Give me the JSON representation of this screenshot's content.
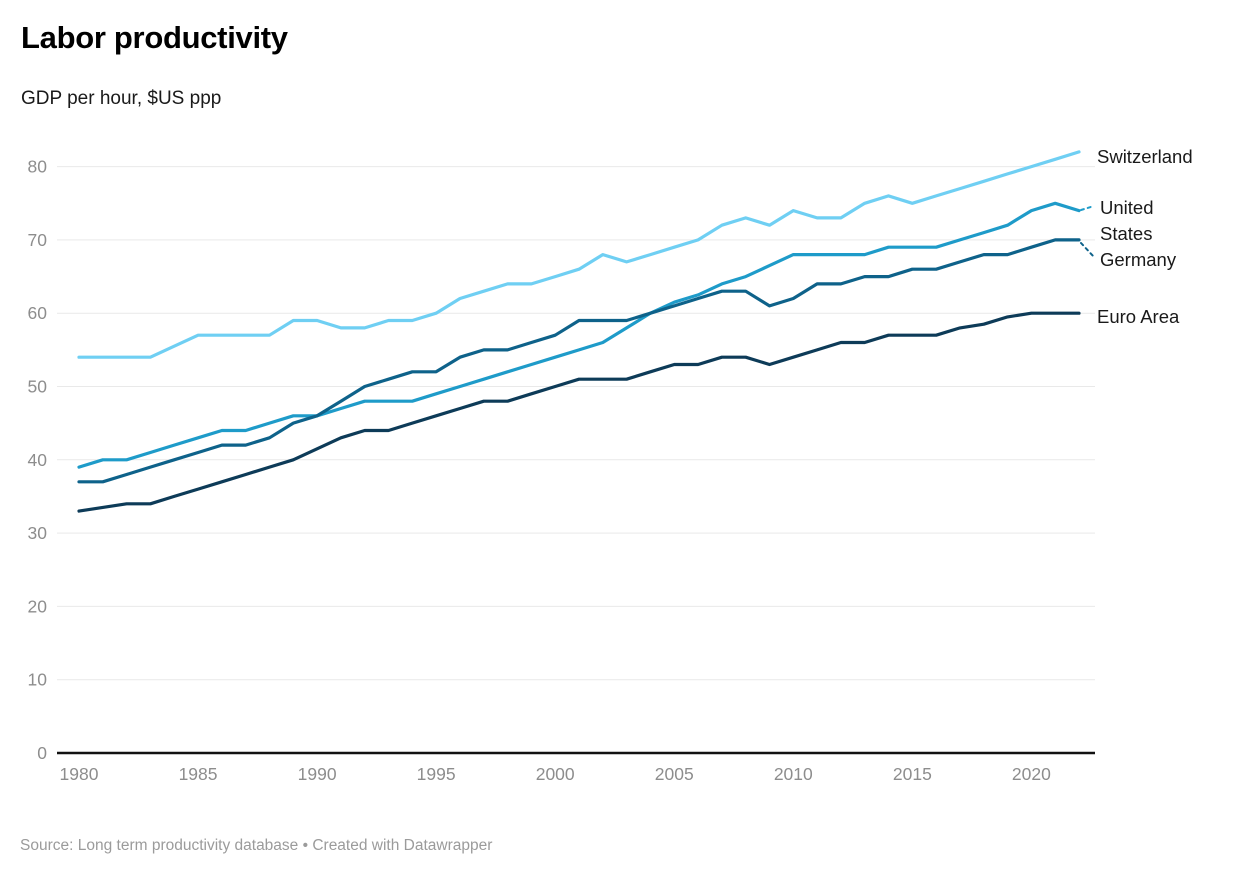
{
  "header": {
    "title": "Labor productivity",
    "subtitle": "GDP per hour, $US ppp"
  },
  "footer": {
    "text": "Source: Long term productivity database • Created with Datawrapper"
  },
  "colors": {
    "switzerland": "#6fcff3",
    "united_states": "#1e9bc9",
    "germany": "#0e628a",
    "euro_area": "#0d3b58",
    "gridline": "#e9e9e9",
    "axis_line": "#111111",
    "tick_label": "#8d8d8d",
    "series_label": "#1a1a1a"
  },
  "chart_data": {
    "type": "line",
    "title": "Labor productivity",
    "subtitle": "GDP per hour, $US ppp",
    "xlabel": "",
    "ylabel": "",
    "xlim": [
      1980,
      2022
    ],
    "ylim": [
      0,
      85
    ],
    "xticks": [
      1980,
      1985,
      1990,
      1995,
      2000,
      2005,
      2010,
      2015,
      2020
    ],
    "yticks": [
      0,
      10,
      20,
      30,
      40,
      50,
      60,
      70,
      80
    ],
    "grid": "horizontal",
    "legend_position": "direct-labels-at-line-ends-right",
    "x": [
      1980,
      1981,
      1982,
      1983,
      1984,
      1985,
      1986,
      1987,
      1988,
      1989,
      1990,
      1991,
      1992,
      1993,
      1994,
      1995,
      1996,
      1997,
      1998,
      1999,
      2000,
      2001,
      2002,
      2003,
      2004,
      2005,
      2006,
      2007,
      2008,
      2009,
      2010,
      2011,
      2012,
      2013,
      2014,
      2015,
      2016,
      2017,
      2018,
      2019,
      2020,
      2021,
      2022
    ],
    "series": [
      {
        "name": "Switzerland",
        "color": "#6fcff3",
        "values": [
          54,
          54,
          54,
          54,
          55.5,
          57,
          57,
          57,
          57,
          59,
          59,
          58,
          58,
          59,
          59,
          60,
          62,
          63,
          64,
          64,
          65,
          66,
          68,
          67,
          68,
          69,
          70,
          72,
          73,
          72,
          74,
          73,
          73,
          75,
          76,
          75,
          76,
          77,
          78,
          79,
          80,
          81,
          82
        ]
      },
      {
        "name": "United States",
        "label_lines": [
          "United",
          "States"
        ],
        "color": "#1e9bc9",
        "values": [
          39,
          40,
          40,
          41,
          42,
          43,
          44,
          44,
          45,
          46,
          46,
          47,
          48,
          48,
          48,
          49,
          50,
          51,
          52,
          53,
          54,
          55,
          56,
          58,
          60,
          61.5,
          62.5,
          64,
          65,
          66.5,
          68,
          68,
          68,
          68,
          69,
          69,
          69,
          70,
          71,
          72,
          74,
          75,
          74
        ]
      },
      {
        "name": "Germany",
        "color": "#0e628a",
        "values": [
          37,
          37,
          38,
          39,
          40,
          41,
          42,
          42,
          43,
          45,
          46,
          48,
          50,
          51,
          52,
          52,
          54,
          55,
          55,
          56,
          57,
          59,
          59,
          59,
          60,
          61,
          62,
          63,
          63,
          61,
          62,
          64,
          64,
          65,
          65,
          66,
          66,
          67,
          68,
          68,
          69,
          70,
          70
        ]
      },
      {
        "name": "Euro Area",
        "color": "#0d3b58",
        "values": [
          33,
          33.5,
          34,
          34,
          35,
          36,
          37,
          38,
          39,
          40,
          41.5,
          43,
          44,
          44,
          45,
          46,
          47,
          48,
          48,
          49,
          50,
          51,
          51,
          51,
          52,
          53,
          53,
          54,
          54,
          53,
          54,
          55,
          56,
          56,
          57,
          57,
          57,
          58,
          58.5,
          59.5,
          60,
          60,
          60
        ]
      }
    ]
  }
}
